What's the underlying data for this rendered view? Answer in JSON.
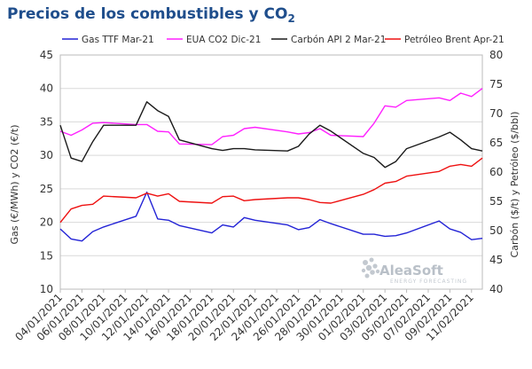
{
  "chart_data": {
    "type": "line",
    "title": "Precios de los combustibles y CO",
    "title_subscript": "2",
    "ylabel_left": "Gas (€/MWh) y CO2 (€/t)",
    "ylabel_right": "Carbón ($/t) y Petróleo ($/bbl)",
    "ylim_left": [
      10,
      45
    ],
    "ylim_right": [
      40,
      80
    ],
    "yticks_left": [
      "10",
      "15",
      "20",
      "25",
      "30",
      "35",
      "40",
      "45"
    ],
    "yticks_right": [
      "40",
      "45",
      "50",
      "55",
      "60",
      "65",
      "70",
      "75",
      "80"
    ],
    "grid": true,
    "legend_position": "top",
    "x": [
      "04/01/2021",
      "05/01/2021",
      "06/01/2021",
      "07/01/2021",
      "08/01/2021",
      "11/01/2021",
      "12/01/2021",
      "13/01/2021",
      "14/01/2021",
      "15/01/2021",
      "18/01/2021",
      "19/01/2021",
      "20/01/2021",
      "21/01/2021",
      "22/01/2021",
      "25/01/2021",
      "26/01/2021",
      "27/01/2021",
      "28/01/2021",
      "29/01/2021",
      "01/02/2021",
      "02/02/2021",
      "03/02/2021",
      "04/02/2021",
      "05/02/2021",
      "08/02/2021",
      "09/02/2021",
      "10/02/2021",
      "11/02/2021",
      "12/02/2021"
    ],
    "xticks": [
      "04/01/2021",
      "06/01/2021",
      "08/01/2021",
      "10/01/2021",
      "12/01/2021",
      "14/01/2021",
      "16/01/2021",
      "18/01/2021",
      "20/01/2021",
      "22/01/2021",
      "24/01/2021",
      "26/01/2021",
      "28/01/2021",
      "30/01/2021",
      "01/02/2021",
      "03/02/2021",
      "05/02/2021",
      "07/02/2021",
      "09/02/2021",
      "11/02/2021"
    ],
    "series": [
      {
        "name": "Gas TTF Mar-21",
        "axis": "left",
        "color": "#2323d6",
        "values": [
          19.0,
          17.5,
          17.2,
          18.6,
          19.3,
          20.9,
          24.5,
          20.5,
          20.3,
          19.5,
          18.4,
          19.6,
          19.3,
          20.7,
          20.3,
          19.6,
          18.9,
          19.2,
          20.4,
          19.8,
          18.2,
          18.2,
          17.9,
          18.0,
          18.4,
          20.2,
          19.0,
          18.5,
          17.4,
          17.6
        ]
      },
      {
        "name": "EUA CO2 Dic-21",
        "axis": "left",
        "color": "#ff21ff",
        "values": [
          33.6,
          33.0,
          33.8,
          34.8,
          34.9,
          34.6,
          34.6,
          33.6,
          33.5,
          31.7,
          31.6,
          32.8,
          33.0,
          34.0,
          34.2,
          33.5,
          33.2,
          33.4,
          34.0,
          33.0,
          32.8,
          34.8,
          37.4,
          37.2,
          38.2,
          38.6,
          38.2,
          39.3,
          38.8,
          40.0
        ]
      },
      {
        "name": "Carbón API 2 Mar-21",
        "axis": "right",
        "color": "#1a1a1a",
        "values": [
          68.0,
          62.4,
          61.8,
          65.2,
          68.0,
          68.0,
          72.0,
          70.5,
          69.5,
          65.5,
          64.0,
          63.7,
          64.0,
          64.0,
          63.8,
          63.6,
          64.4,
          66.5,
          68.0,
          67.0,
          63.2,
          62.5,
          60.8,
          61.8,
          64.0,
          66.0,
          66.8,
          65.5,
          64.0,
          63.6
        ]
      },
      {
        "name": "Petróleo Brent Apr-21",
        "axis": "right",
        "color": "#ee1111",
        "values": [
          51.4,
          53.7,
          54.3,
          54.5,
          55.9,
          55.6,
          56.4,
          55.9,
          56.3,
          55.0,
          54.7,
          55.8,
          55.9,
          55.1,
          55.3,
          55.6,
          55.6,
          55.3,
          54.8,
          54.7,
          56.2,
          57.0,
          58.1,
          58.4,
          59.3,
          60.1,
          61.0,
          61.3,
          61.0,
          62.4
        ]
      }
    ]
  },
  "watermark": {
    "brand": "AleaSoft",
    "tagline": "ENERGY FORECASTING"
  }
}
